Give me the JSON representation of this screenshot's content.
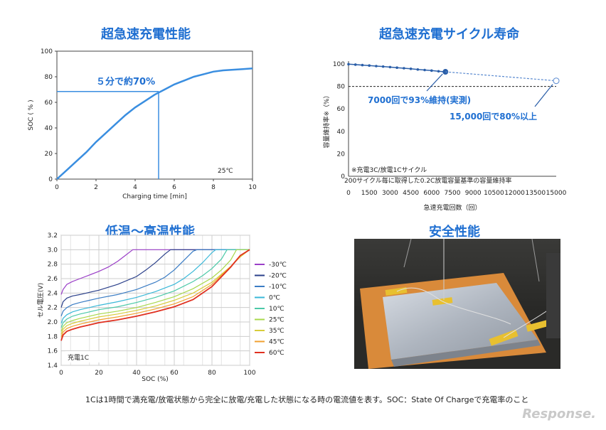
{
  "titles": {
    "fast_charge": "超急速充電性能",
    "cycle_life": "超急速充電サイクル寿命",
    "temp": "低温～高温性能",
    "safety": "安全性能"
  },
  "footnote": "1Cは1時間で満充電/放電状態から完全に放電/充電した状態になる時の電流値を表す。SOC：State Of Chargeで充電率のこと",
  "watermark": "Response.",
  "chart_data": [
    {
      "type": "line",
      "title": "超急速充電性能",
      "xlabel": "Charging  time [min]",
      "ylabel": "SOC ( % )",
      "xlim": [
        0,
        10
      ],
      "ylim": [
        0,
        100
      ],
      "xticks": [
        "0",
        "2",
        "4",
        "6",
        "8",
        "10"
      ],
      "yticks": [
        "0",
        "20",
        "40",
        "60",
        "80",
        "100"
      ],
      "series": [
        {
          "x": [
            0,
            0.5,
            1,
            1.5,
            2,
            2.5,
            3,
            3.5,
            4,
            4.5,
            5,
            5.5,
            6,
            6.5,
            7,
            7.5,
            8,
            8.5,
            9,
            9.5,
            10
          ],
          "y": [
            0,
            7,
            14,
            21,
            29,
            36,
            43,
            50,
            56,
            61,
            66,
            70,
            74,
            77,
            80,
            82,
            84,
            85,
            85.5,
            86,
            86.5
          ]
        }
      ],
      "annotation": "５分で約70%",
      "marker": {
        "x": 5.2,
        "y": 68.5
      },
      "temp_label": "25℃",
      "colors": {
        "line": "#3a8ee0"
      }
    },
    {
      "type": "line",
      "title": "超急速充電サイクル寿命",
      "xlabel": "急速充電回数（回）",
      "ylabel": "容量維持率※（%）",
      "xlim": [
        0,
        15000
      ],
      "ylim": [
        0,
        100
      ],
      "xticks": [
        "0",
        "1500",
        "3000",
        "4500",
        "6000",
        "7500",
        "9000",
        "10500",
        "12000",
        "13500",
        "15000"
      ],
      "yticks": [
        "0",
        "20",
        "40",
        "60",
        "80",
        "100"
      ],
      "measured": {
        "x": [
          0,
          500,
          1000,
          1500,
          2000,
          2500,
          3000,
          3500,
          4000,
          4500,
          5000,
          5500,
          6000,
          6500,
          7000
        ],
        "y": [
          99.8,
          99.4,
          99,
          98.6,
          98.1,
          97.7,
          97.2,
          96.7,
          96.2,
          95.7,
          95.1,
          94.6,
          94.1,
          93.5,
          93
        ]
      },
      "projected": {
        "x": [
          7000,
          15000
        ],
        "y": [
          93,
          85
        ]
      },
      "reference_line_y": 80,
      "annotations": [
        "7000回で93%維持(実測)",
        "15,000回で80%以上"
      ],
      "notes": [
        "※充電3C/放電1Cサイクル",
        "200サイクル毎に取得した0.2C放電容量基準の容量維持率"
      ],
      "colors": {
        "line": "#2a5ea8"
      }
    },
    {
      "type": "line",
      "title": "低温～高温性能",
      "xlabel": "SOC (%)",
      "ylabel": "セル電圧(V)",
      "xlim": [
        0,
        100
      ],
      "ylim": [
        1.4,
        3.2
      ],
      "xticks": [
        "0",
        "20",
        "40",
        "60",
        "80",
        "100"
      ],
      "yticks": [
        "1.4",
        "1.6",
        "1.8",
        "2.0",
        "2.2",
        "2.4",
        "2.6",
        "2.8",
        "3.0",
        "3.2"
      ],
      "annotation": "充電1C",
      "series": [
        {
          "name": "-30℃",
          "color": "#9b3fc8",
          "x": [
            0,
            1,
            3,
            6,
            10,
            15,
            20,
            25,
            30,
            34,
            38,
            40,
            60,
            100
          ],
          "y": [
            2.38,
            2.45,
            2.52,
            2.56,
            2.6,
            2.65,
            2.7,
            2.76,
            2.84,
            2.92,
            3.0,
            3.0,
            3.0,
            3.0
          ]
        },
        {
          "name": "-20℃",
          "color": "#2a3f8a",
          "x": [
            0,
            1,
            3,
            6,
            10,
            15,
            20,
            30,
            40,
            45,
            50,
            55,
            58,
            60,
            100
          ],
          "y": [
            2.2,
            2.28,
            2.33,
            2.36,
            2.38,
            2.41,
            2.44,
            2.52,
            2.63,
            2.72,
            2.82,
            2.94,
            3.0,
            3.0,
            3.0
          ]
        },
        {
          "name": "-10℃",
          "color": "#3a7cc4",
          "x": [
            0,
            1,
            3,
            6,
            10,
            15,
            20,
            30,
            40,
            50,
            55,
            60,
            65,
            70,
            72,
            100
          ],
          "y": [
            2.08,
            2.15,
            2.2,
            2.24,
            2.27,
            2.3,
            2.33,
            2.38,
            2.45,
            2.55,
            2.62,
            2.72,
            2.85,
            2.98,
            3.0,
            3.0
          ]
        },
        {
          "name": "0℃",
          "color": "#3ab8d8",
          "x": [
            0,
            1,
            3,
            6,
            10,
            15,
            20,
            30,
            40,
            50,
            60,
            65,
            70,
            75,
            80,
            82,
            100
          ],
          "y": [
            1.98,
            2.05,
            2.1,
            2.14,
            2.17,
            2.2,
            2.23,
            2.28,
            2.34,
            2.42,
            2.52,
            2.6,
            2.7,
            2.82,
            2.96,
            3.0,
            3.0
          ]
        },
        {
          "name": "10℃",
          "color": "#4cc9a8",
          "x": [
            0,
            1,
            3,
            6,
            10,
            15,
            20,
            30,
            40,
            50,
            60,
            70,
            75,
            80,
            85,
            88,
            100
          ],
          "y": [
            1.92,
            1.99,
            2.04,
            2.08,
            2.11,
            2.14,
            2.17,
            2.21,
            2.27,
            2.34,
            2.43,
            2.56,
            2.64,
            2.74,
            2.87,
            3.0,
            3.0
          ]
        },
        {
          "name": "25℃",
          "color": "#a8d84c",
          "x": [
            0,
            1,
            3,
            6,
            10,
            15,
            20,
            30,
            40,
            50,
            60,
            70,
            80,
            85,
            90,
            93,
            100
          ],
          "y": [
            1.87,
            1.94,
            1.99,
            2.02,
            2.05,
            2.08,
            2.11,
            2.15,
            2.2,
            2.27,
            2.35,
            2.46,
            2.61,
            2.72,
            2.86,
            3.0,
            3.0
          ]
        },
        {
          "name": "35℃",
          "color": "#d8cc3a",
          "x": [
            0,
            1,
            3,
            6,
            10,
            15,
            20,
            30,
            40,
            50,
            60,
            70,
            80,
            90,
            95,
            100
          ],
          "y": [
            1.83,
            1.9,
            1.95,
            1.98,
            2.01,
            2.04,
            2.07,
            2.11,
            2.16,
            2.22,
            2.3,
            2.4,
            2.55,
            2.77,
            2.9,
            3.0
          ]
        },
        {
          "name": "45℃",
          "color": "#f0a030",
          "x": [
            0,
            1,
            3,
            6,
            10,
            15,
            20,
            30,
            40,
            50,
            60,
            70,
            80,
            90,
            95,
            100
          ],
          "y": [
            1.79,
            1.86,
            1.91,
            1.94,
            1.97,
            2.0,
            2.03,
            2.07,
            2.12,
            2.18,
            2.25,
            2.35,
            2.52,
            2.77,
            2.92,
            3.0
          ]
        },
        {
          "name": "60℃",
          "color": "#e03020",
          "x": [
            0,
            1,
            3,
            6,
            10,
            15,
            20,
            30,
            40,
            50,
            60,
            70,
            80,
            90,
            95,
            100
          ],
          "y": [
            1.74,
            1.82,
            1.87,
            1.9,
            1.93,
            1.96,
            1.99,
            2.03,
            2.08,
            2.14,
            2.21,
            2.31,
            2.49,
            2.76,
            2.92,
            3.0
          ]
        }
      ]
    }
  ]
}
